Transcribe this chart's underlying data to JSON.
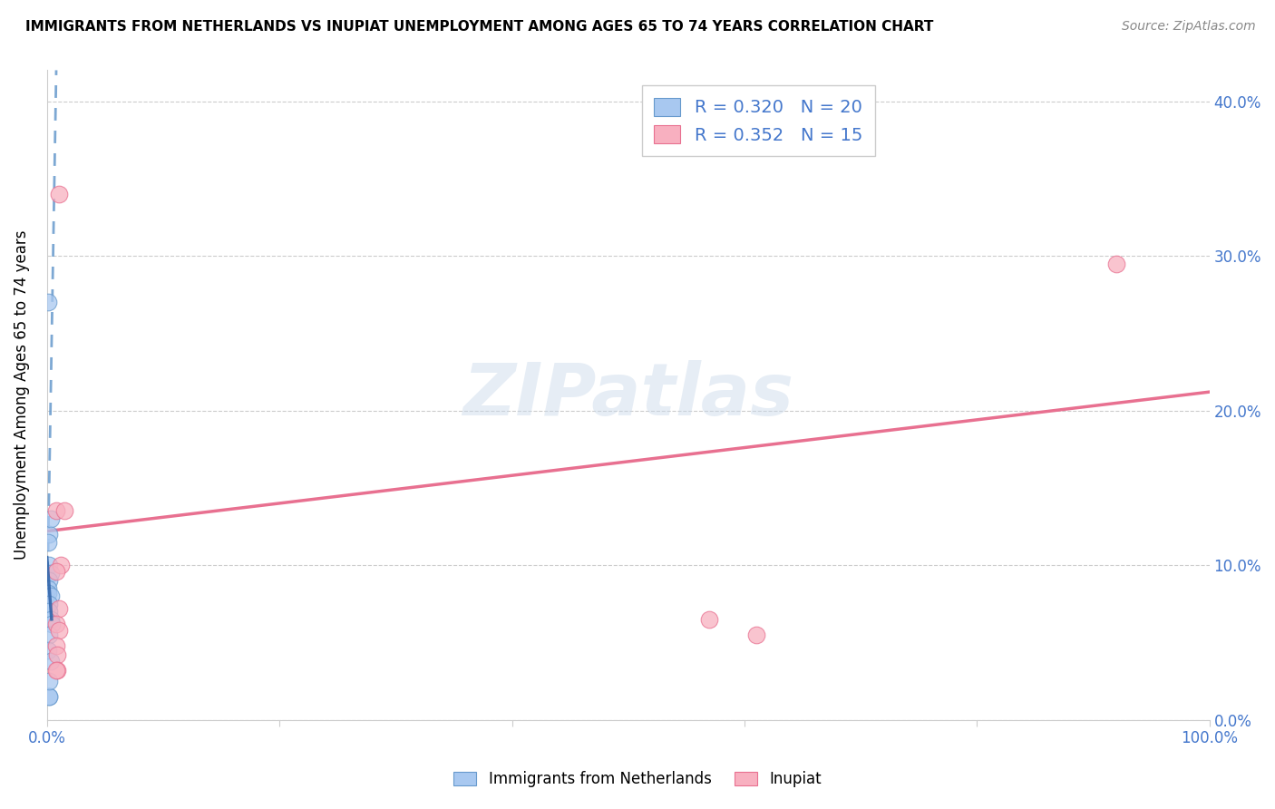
{
  "title": "IMMIGRANTS FROM NETHERLANDS VS INUPIAT UNEMPLOYMENT AMONG AGES 65 TO 74 YEARS CORRELATION CHART",
  "source": "Source: ZipAtlas.com",
  "ylabel": "Unemployment Among Ages 65 to 74 years",
  "xmin": 0.0,
  "xmax": 1.0,
  "ymin": 0.0,
  "ymax": 0.42,
  "y_ticks": [
    0.0,
    0.1,
    0.2,
    0.3,
    0.4
  ],
  "blue_R": 0.32,
  "blue_N": 20,
  "pink_R": 0.352,
  "pink_N": 15,
  "blue_fill_color": "#a8c8f0",
  "pink_fill_color": "#f8b0c0",
  "blue_edge_color": "#6699cc",
  "pink_edge_color": "#e87090",
  "blue_line_color": "#6699cc",
  "pink_line_color": "#e87090",
  "blue_scatter_x": [
    0.001,
    0.002,
    0.003,
    0.001,
    0.002,
    0.003,
    0.002,
    0.001,
    0.001,
    0.003,
    0.002,
    0.002,
    0.003,
    0.004,
    0.002,
    0.001,
    0.003,
    0.002,
    0.002,
    0.002
  ],
  "blue_scatter_y": [
    0.27,
    0.12,
    0.13,
    0.115,
    0.1,
    0.095,
    0.09,
    0.085,
    0.082,
    0.08,
    0.075,
    0.07,
    0.065,
    0.062,
    0.055,
    0.045,
    0.038,
    0.015,
    0.015,
    0.025
  ],
  "pink_scatter_x": [
    0.01,
    0.008,
    0.015,
    0.012,
    0.008,
    0.01,
    0.008,
    0.01,
    0.008,
    0.57,
    0.61,
    0.009,
    0.009,
    0.92,
    0.008
  ],
  "pink_scatter_y": [
    0.34,
    0.135,
    0.135,
    0.1,
    0.096,
    0.072,
    0.062,
    0.058,
    0.048,
    0.065,
    0.055,
    0.042,
    0.032,
    0.295,
    0.032
  ],
  "blue_line_x0": 0.0,
  "blue_line_x1": 0.008,
  "blue_line_y0": 0.065,
  "blue_line_y1": 0.42,
  "pink_line_x0": 0.0,
  "pink_line_x1": 1.0,
  "pink_line_y0": 0.122,
  "pink_line_y1": 0.212,
  "watermark_text": "ZIPatlas",
  "grid_color": "#cccccc",
  "marker_size": 180
}
